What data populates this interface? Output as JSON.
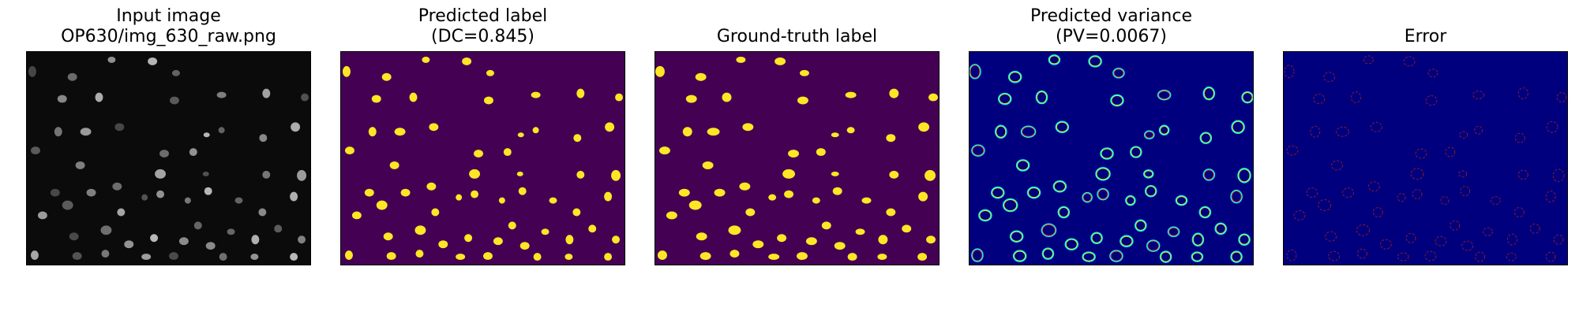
{
  "panels": [
    {
      "id": "input",
      "title_lines": [
        "Input image",
        "OP630/img_630_raw.png"
      ]
    },
    {
      "id": "pred",
      "title_lines": [
        "Predicted label",
        "(DC=0.845)"
      ]
    },
    {
      "id": "gt",
      "title_lines": [
        "Ground-truth label"
      ]
    },
    {
      "id": "var",
      "title_lines": [
        "Predicted variance",
        "(PV=0.0067)"
      ]
    },
    {
      "id": "err",
      "title_lines": [
        "Error"
      ]
    }
  ],
  "colors": {
    "input_bg": "#0b0b0b",
    "label_bg": "#440154",
    "label_fg": "#fde725",
    "var_bg": "#00007f",
    "err_bg": "#00007f",
    "err_fg": "#9b1c1c"
  }
}
